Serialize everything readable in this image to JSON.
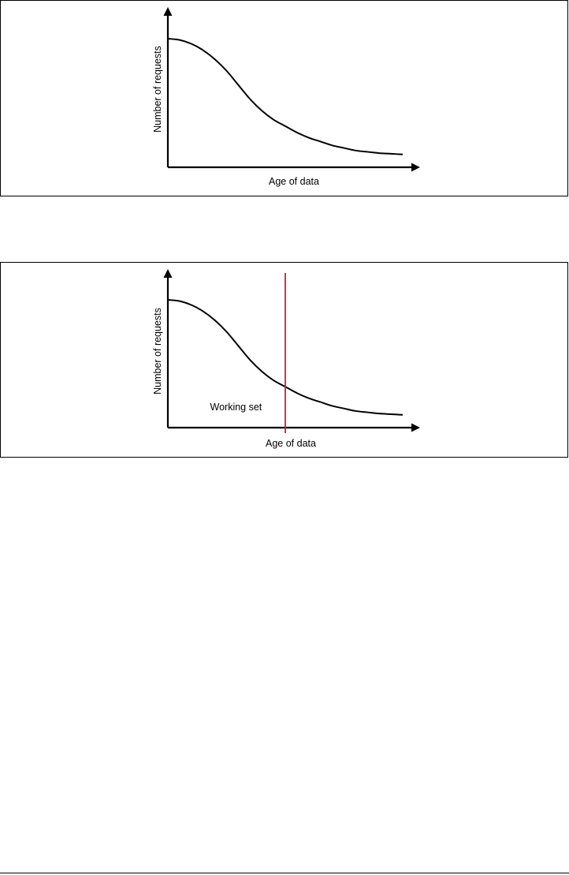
{
  "chart_data": [
    {
      "type": "line",
      "xlabel": "Age of data",
      "ylabel": "Number of requests",
      "series": [
        {
          "color": "#000000",
          "x": [
            0,
            0.5,
            1,
            1.5,
            2,
            2.5,
            3,
            3.5,
            4,
            4.5,
            5,
            5.5,
            6,
            6.5,
            7,
            7.5,
            8,
            8.5,
            9,
            9.5,
            10
          ],
          "y": [
            1.0,
            0.99,
            0.96,
            0.91,
            0.84,
            0.75,
            0.64,
            0.53,
            0.44,
            0.37,
            0.32,
            0.27,
            0.23,
            0.2,
            0.17,
            0.15,
            0.13,
            0.12,
            0.11,
            0.105,
            0.1
          ]
        }
      ],
      "xlim": [
        0,
        10.7
      ],
      "ylim": [
        0,
        1.3
      ],
      "grid": false
    },
    {
      "type": "line",
      "xlabel": "Age of data",
      "ylabel": "Number of requests",
      "series": [
        {
          "color": "#000000",
          "x": [
            0,
            0.5,
            1,
            1.5,
            2,
            2.5,
            3,
            3.5,
            4,
            4.5,
            5,
            5.5,
            6,
            6.5,
            7,
            7.5,
            8,
            8.5,
            9,
            9.5,
            10
          ],
          "y": [
            1.0,
            0.99,
            0.96,
            0.91,
            0.84,
            0.75,
            0.64,
            0.53,
            0.44,
            0.37,
            0.32,
            0.27,
            0.23,
            0.2,
            0.17,
            0.15,
            0.13,
            0.12,
            0.11,
            0.105,
            0.1
          ]
        }
      ],
      "marker": {
        "x": 5,
        "color": "#c0272d"
      },
      "annotation": {
        "text": "Working set",
        "x": 3,
        "y": 0.16
      },
      "xlim": [
        0,
        10.7
      ],
      "ylim": [
        0,
        1.3
      ],
      "grid": false
    }
  ]
}
